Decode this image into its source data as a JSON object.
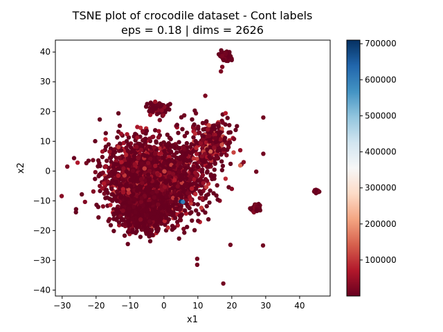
{
  "chart_data": {
    "type": "scatter",
    "title": "TSNE plot of crocodile dataset - Cont labels",
    "subtitle": "eps = 0.18 | dims = 2626",
    "xlabel": "x1",
    "ylabel": "x2",
    "xlim": [
      -32,
      49
    ],
    "ylim": [
      -42,
      44
    ],
    "x_ticks": [
      -30,
      -20,
      -10,
      0,
      10,
      20,
      30,
      40
    ],
    "y_ticks": [
      -40,
      -30,
      -20,
      -10,
      0,
      10,
      20,
      30,
      40
    ],
    "grid": false,
    "colormap": "RdBu",
    "colorbar": {
      "min": 0,
      "max": 710000,
      "ticks": [
        100000,
        200000,
        300000,
        400000,
        500000,
        600000,
        700000
      ],
      "tick_labels": [
        "100000",
        "200000",
        "300000",
        "400000",
        "500000",
        "600000",
        "700000"
      ]
    },
    "clusters": [
      {
        "center": [
          -3,
          -3
        ],
        "spread": [
          9,
          8.5
        ],
        "count": 2600,
        "value_range": [
          0,
          120000
        ]
      },
      {
        "center": [
          -6,
          -14
        ],
        "spread": [
          5,
          4
        ],
        "count": 500,
        "value_range": [
          0,
          30000
        ]
      },
      {
        "center": [
          -2,
          21
        ],
        "spread": [
          2,
          1.5
        ],
        "count": 80,
        "value_range": [
          0,
          60000
        ]
      },
      {
        "center": [
          18,
          38.5
        ],
        "spread": [
          1.2,
          0.9
        ],
        "count": 90,
        "value_range": [
          0,
          40000
        ]
      },
      {
        "center": [
          27,
          -12.5
        ],
        "spread": [
          0.9,
          0.9
        ],
        "count": 60,
        "value_range": [
          0,
          40000
        ]
      },
      {
        "center": [
          45,
          -6.8
        ],
        "spread": [
          0.4,
          0.4
        ],
        "count": 15,
        "value_range": [
          0,
          20000
        ]
      },
      {
        "center": [
          14,
          10
        ],
        "spread": [
          4,
          5
        ],
        "count": 300,
        "value_range": [
          0,
          160000
        ]
      }
    ],
    "points": [
      {
        "x": -28.5,
        "y": 1.5,
        "v": 20000
      },
      {
        "x": 29.3,
        "y": 18,
        "v": 10000
      },
      {
        "x": 29.3,
        "y": 5.8,
        "v": 10000
      },
      {
        "x": 27.2,
        "y": -0.2,
        "v": 10000
      },
      {
        "x": 9.8,
        "y": -29.5,
        "v": 10000
      },
      {
        "x": 9.8,
        "y": -31.5,
        "v": 10000
      },
      {
        "x": 19.6,
        "y": -24.8,
        "v": 10000
      },
      {
        "x": 29.2,
        "y": -25,
        "v": 10000
      },
      {
        "x": 17.5,
        "y": -37.8,
        "v": 10000
      },
      {
        "x": 17.2,
        "y": 35,
        "v": 20000
      },
      {
        "x": 16.8,
        "y": 33.5,
        "v": 20000
      },
      {
        "x": 12.2,
        "y": 25.3,
        "v": 20000
      },
      {
        "x": 5,
        "y": -10.2,
        "v": 700000
      },
      {
        "x": 5.6,
        "y": -10.4,
        "v": 600000
      },
      {
        "x": 20,
        "y": -6,
        "v": 30000
      },
      {
        "x": 22.5,
        "y": 7,
        "v": 40000
      },
      {
        "x": 23.5,
        "y": 3,
        "v": 30000
      }
    ]
  }
}
